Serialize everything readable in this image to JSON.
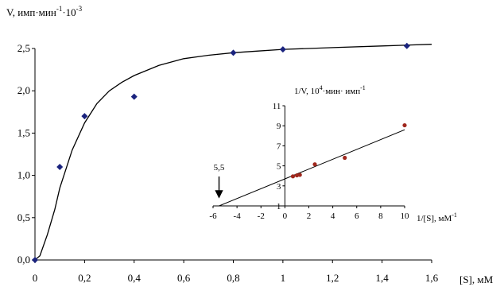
{
  "chart_data": [
    {
      "type": "scatter",
      "ylabel_main": "V, имп·мин",
      "ylabel_exp1": "-1",
      "ylabel_mid": "·10",
      "ylabel_exp2": "-3",
      "xlabel": "[S], мМ",
      "xlim": [
        0,
        1.6
      ],
      "ylim": [
        0,
        2.5
      ],
      "xticks": [
        "0",
        "0,2",
        "0,4",
        "0,6",
        "0,8",
        "1",
        "1,2",
        "1,4",
        "1,6"
      ],
      "yticks": [
        "0,0",
        "0,5",
        "1,0",
        "1,5",
        "2,0",
        "2,5"
      ],
      "grid": false,
      "series": [
        {
          "marker": "diamond",
          "color": "#1a237e",
          "x": [
            0,
            0.1,
            0.2,
            0.4,
            0.8,
            1.0,
            1.5
          ],
          "y": [
            0,
            1.1,
            1.7,
            1.93,
            2.45,
            2.49,
            2.53
          ]
        }
      ],
      "fit_curve": {
        "x": [
          0,
          0.02,
          0.05,
          0.08,
          0.1,
          0.15,
          0.2,
          0.25,
          0.3,
          0.35,
          0.4,
          0.5,
          0.6,
          0.7,
          0.8,
          0.9,
          1.0,
          1.2,
          1.4,
          1.6
        ],
        "y": [
          0,
          0.05,
          0.3,
          0.6,
          0.85,
          1.3,
          1.62,
          1.85,
          2.0,
          2.1,
          2.18,
          2.3,
          2.38,
          2.42,
          2.45,
          2.47,
          2.49,
          2.51,
          2.53,
          2.55
        ]
      }
    },
    {
      "type": "scatter",
      "ylabel_main": "1/V, 10",
      "ylabel_exp1": "4",
      "ylabel_mid": "·мин· имп",
      "ylabel_exp2": "-1",
      "xlabel_main": "1/[S], мМ",
      "xlabel_exp": "-1",
      "xlim": [
        -6,
        10
      ],
      "ylim": [
        1,
        11
      ],
      "xticks": [
        "-6",
        "-4",
        "-2",
        "0",
        "2",
        "4",
        "6",
        "8",
        "10"
      ],
      "yticks": [
        "1",
        "3",
        "5",
        "7",
        "9",
        "11"
      ],
      "grid": false,
      "series": [
        {
          "marker": "circle",
          "color": "#a0281e",
          "x": [
            0.67,
            1.0,
            1.25,
            2.5,
            5.0,
            10.0
          ],
          "y": [
            3.95,
            4.05,
            4.1,
            5.15,
            5.8,
            9.05
          ]
        }
      ],
      "fit_line": {
        "x1": -5.5,
        "y1": 1,
        "x2": 10,
        "y2": 8.6
      },
      "annotation": {
        "text": "5,5",
        "x": -5.5
      }
    }
  ]
}
